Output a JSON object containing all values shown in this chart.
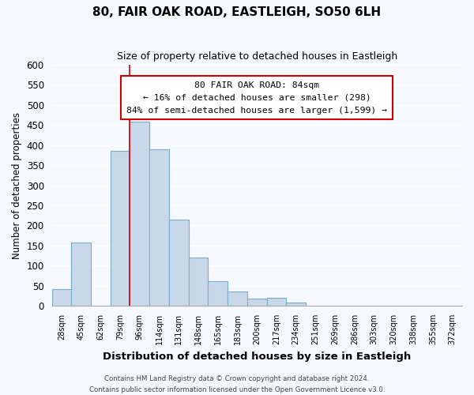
{
  "title": "80, FAIR OAK ROAD, EASTLEIGH, SO50 6LH",
  "subtitle": "Size of property relative to detached houses in Eastleigh",
  "xlabel": "Distribution of detached houses by size in Eastleigh",
  "ylabel": "Number of detached properties",
  "bar_labels": [
    "28sqm",
    "45sqm",
    "62sqm",
    "79sqm",
    "96sqm",
    "114sqm",
    "131sqm",
    "148sqm",
    "165sqm",
    "183sqm",
    "200sqm",
    "217sqm",
    "234sqm",
    "251sqm",
    "269sqm",
    "286sqm",
    "303sqm",
    "320sqm",
    "338sqm",
    "355sqm",
    "372sqm"
  ],
  "bar_values": [
    42,
    158,
    0,
    385,
    458,
    390,
    215,
    120,
    62,
    35,
    18,
    20,
    8,
    0,
    0,
    0,
    0,
    0,
    0,
    0,
    0
  ],
  "bar_color": "#c8d8ea",
  "bar_edge_color": "#7aaac8",
  "vline_color": "#cc0000",
  "vline_x_index": 3.5,
  "ylim": [
    0,
    600
  ],
  "yticks": [
    0,
    50,
    100,
    150,
    200,
    250,
    300,
    350,
    400,
    450,
    500,
    550,
    600
  ],
  "annotation_line1": "80 FAIR OAK ROAD: 84sqm",
  "annotation_line2": "← 16% of detached houses are smaller (298)",
  "annotation_line3": "84% of semi-detached houses are larger (1,599) →",
  "footer1": "Contains HM Land Registry data © Crown copyright and database right 2024.",
  "footer2": "Contains public sector information licensed under the Open Government Licence v3.0.",
  "bg_color": "#f5f8fc",
  "plot_bg_color": "#f5f8fc",
  "grid_color": "#ffffff"
}
